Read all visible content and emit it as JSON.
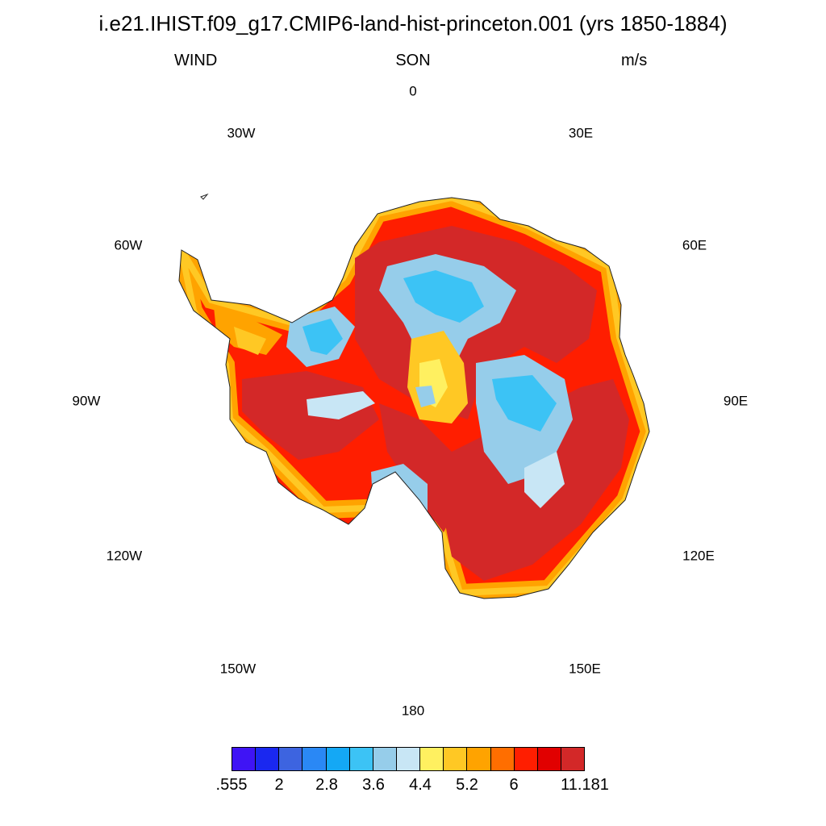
{
  "title": "i.e21.IHIST.f09_g17.CMIP6-land-hist-princeton.001 (yrs 1850-1884)",
  "variable": "WIND",
  "season": "SON",
  "units": "m/s",
  "longitude_labels": [
    "0",
    "30E",
    "60E",
    "90E",
    "120E",
    "150E",
    "180",
    "150W",
    "120W",
    "90W",
    "60W",
    "30W"
  ],
  "colorbar": {
    "colors": [
      "#3f14f5",
      "#1a28f0",
      "#3d64e0",
      "#2a88f5",
      "#14a8f5",
      "#3cc3f5",
      "#96cdea",
      "#c8e6f5",
      "#fff060",
      "#ffc824",
      "#ffa300",
      "#ff6e00",
      "#ff1e00",
      "#e10000",
      "#d32828"
    ],
    "tick_labels": [
      ".555",
      "2",
      "2.8",
      "3.6",
      "4.4",
      "5.2",
      "6",
      "11.181"
    ]
  }
}
